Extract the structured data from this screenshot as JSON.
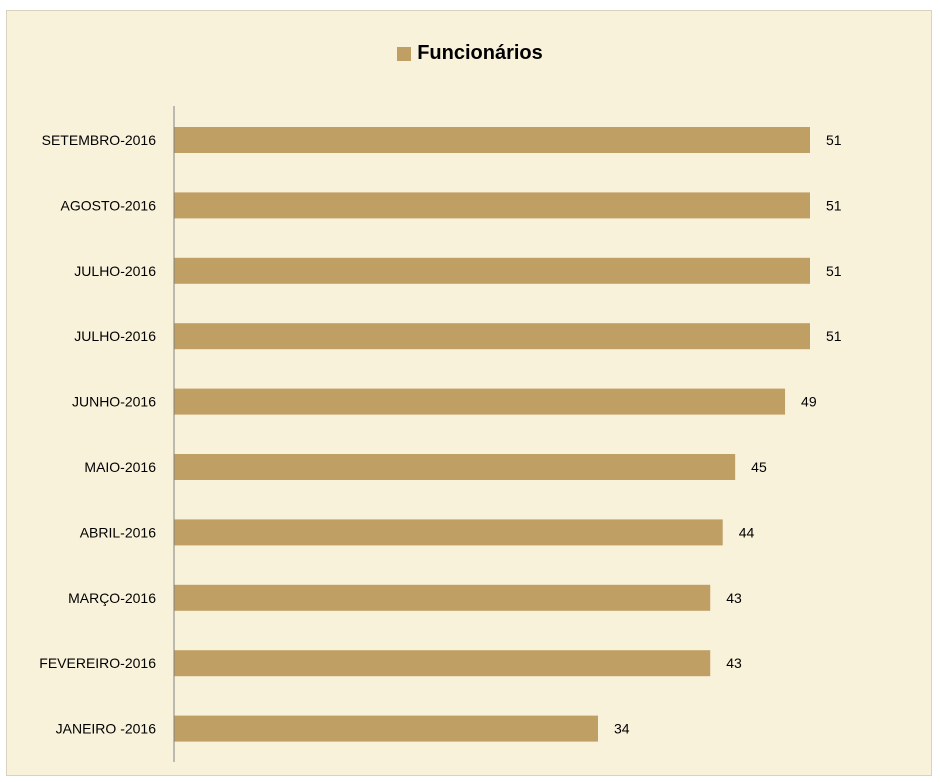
{
  "colors": {
    "background": "#f9f2db",
    "bar": "#c09f64",
    "axis": "#808080"
  },
  "chart_data": {
    "type": "bar",
    "orientation": "horizontal",
    "categories": [
      "SETEMBRO-2016",
      "AGOSTO-2016",
      "JULHO-2016",
      "JULHO-2016",
      "JUNHO-2016",
      "MAIO-2016",
      "ABRIL-2016",
      "MARÇO-2016",
      "FEVEREIRO-2016",
      "JANEIRO -2016"
    ],
    "series": [
      {
        "name": "Funcionários",
        "values": [
          51,
          51,
          51,
          51,
          49,
          45,
          44,
          43,
          43,
          34
        ]
      }
    ],
    "legend_position": "top",
    "data_labels": true,
    "grid": false,
    "xlim": [
      0,
      60
    ]
  }
}
